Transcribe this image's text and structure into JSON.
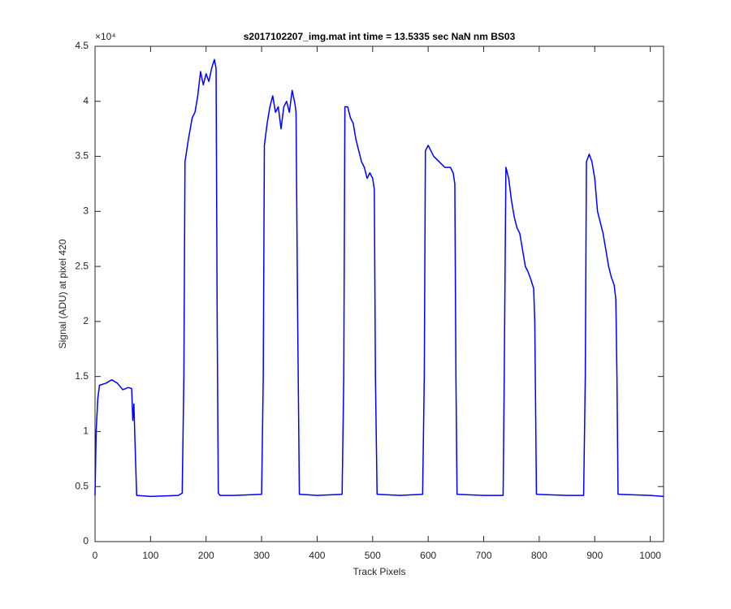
{
  "chart_data": {
    "type": "line",
    "title": "s2017102207_img.mat int time = 13.5335 sec  NaN nm BS03",
    "x_label": "Track Pixels",
    "y_label": "Signal (ADU) at pixel 420",
    "y_scale_label": "×10⁴",
    "x": [
      0,
      2,
      5,
      8,
      20,
      30,
      40,
      50,
      60,
      66,
      68,
      70,
      72,
      75,
      100,
      150,
      157,
      160,
      162,
      168,
      175,
      180,
      185,
      190,
      195,
      200,
      205,
      210,
      215,
      218,
      220,
      222,
      225,
      250,
      300,
      303,
      305,
      310,
      315,
      320,
      325,
      330,
      335,
      340,
      345,
      350,
      355,
      360,
      362,
      365,
      368,
      400,
      445,
      448,
      450,
      455,
      460,
      465,
      470,
      475,
      480,
      485,
      490,
      495,
      500,
      503,
      505,
      508,
      550,
      590,
      593,
      595,
      600,
      605,
      610,
      620,
      630,
      640,
      645,
      648,
      650,
      652,
      700,
      735,
      737,
      740,
      745,
      750,
      755,
      760,
      765,
      770,
      775,
      780,
      785,
      790,
      792,
      795,
      850,
      880,
      883,
      885,
      890,
      895,
      900,
      905,
      910,
      915,
      920,
      925,
      930,
      935,
      938,
      940,
      942,
      1000,
      1024
    ],
    "series": [
      {
        "color": "#0000ff",
        "values": [
          0.42,
          1.0,
          1.3,
          1.42,
          1.44,
          1.47,
          1.44,
          1.38,
          1.4,
          1.39,
          1.1,
          1.25,
          0.9,
          0.42,
          0.41,
          0.42,
          0.44,
          1.5,
          3.45,
          3.65,
          3.85,
          3.9,
          4.05,
          4.27,
          4.15,
          4.25,
          4.18,
          4.3,
          4.38,
          4.3,
          2.0,
          0.44,
          0.42,
          0.42,
          0.43,
          1.5,
          3.6,
          3.8,
          3.95,
          4.05,
          3.9,
          3.95,
          3.75,
          3.95,
          4.0,
          3.9,
          4.1,
          3.98,
          3.9,
          2.0,
          0.43,
          0.42,
          0.43,
          1.5,
          3.95,
          3.95,
          3.85,
          3.8,
          3.65,
          3.55,
          3.45,
          3.4,
          3.3,
          3.35,
          3.3,
          3.2,
          1.5,
          0.43,
          0.42,
          0.43,
          1.5,
          3.55,
          3.6,
          3.55,
          3.5,
          3.45,
          3.4,
          3.4,
          3.35,
          3.25,
          1.5,
          0.43,
          0.42,
          0.42,
          1.5,
          3.4,
          3.3,
          3.1,
          2.95,
          2.85,
          2.8,
          2.65,
          2.5,
          2.45,
          2.38,
          2.3,
          2.0,
          0.43,
          0.42,
          0.42,
          1.5,
          3.45,
          3.52,
          3.45,
          3.3,
          3.0,
          2.9,
          2.8,
          2.65,
          2.5,
          2.4,
          2.33,
          2.2,
          1.5,
          0.43,
          0.42,
          0.41
        ]
      }
    ],
    "xlim": [
      0,
      1024
    ],
    "xticks": [
      0,
      100,
      200,
      300,
      400,
      500,
      600,
      700,
      800,
      900,
      1000
    ],
    "ylim": [
      0,
      4.5
    ],
    "yticks": [
      0,
      0.5,
      1,
      1.5,
      2,
      2.5,
      3,
      3.5,
      4,
      4.5
    ]
  }
}
